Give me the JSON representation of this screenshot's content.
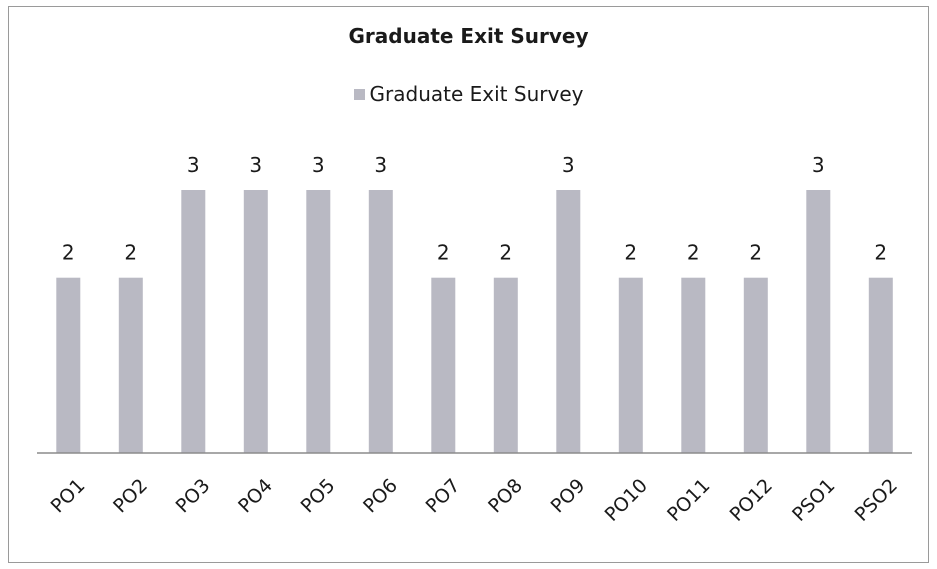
{
  "chart_data": {
    "type": "bar",
    "title": "Graduate Exit Survey",
    "categories": [
      "PO1",
      "PO2",
      "PO3",
      "PO4",
      "PO5",
      "PO6",
      "PO7",
      "PO8",
      "PO9",
      "PO10",
      "PO11",
      "PO12",
      "PSO1",
      "PSO2"
    ],
    "series": [
      {
        "name": "Graduate Exit Survey",
        "values": [
          2,
          2,
          3,
          3,
          3,
          3,
          2,
          2,
          3,
          2,
          2,
          2,
          3,
          2
        ]
      }
    ],
    "xlabel": "",
    "ylabel": "",
    "ylim": [
      0,
      3
    ],
    "grid": false,
    "legend": "top",
    "data_labels": true,
    "colors": {
      "bar": "#b9b9c3",
      "axis": "#8c8c8c",
      "text": "#1a1a1a"
    }
  }
}
